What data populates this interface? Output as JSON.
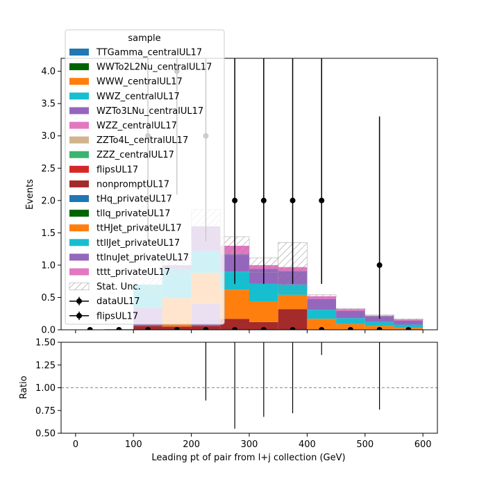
{
  "chart_data": {
    "type": "bar",
    "stacked": true,
    "bin_edges": [
      0,
      50,
      100,
      150,
      200,
      250,
      300,
      350,
      400,
      450,
      500,
      550,
      600
    ],
    "xlabel": "Leading pt of pair from l+j collection (GeV)",
    "xticks": [
      0,
      100,
      200,
      300,
      400,
      500,
      600
    ],
    "xlim": [
      -25,
      625
    ],
    "main": {
      "ylabel": "Events",
      "ylim": [
        0,
        4.2
      ],
      "yticks": [
        "0.0",
        "0.5",
        "1.0",
        "1.5",
        "2.0",
        "2.5",
        "3.0",
        "3.5",
        "4.0"
      ]
    },
    "ratio": {
      "ylabel": "Ratio",
      "ylim": [
        0.5,
        1.5
      ],
      "yticks": [
        "0.50",
        "0.75",
        "1.00",
        "1.25",
        "1.50"
      ],
      "reference_line": 1.0,
      "points": [
        {
          "x": 225,
          "lo": 0.86,
          "hi": 1.5
        },
        {
          "x": 275,
          "lo": 0.55,
          "hi": 1.5
        },
        {
          "x": 325,
          "lo": 0.68,
          "hi": 1.5
        },
        {
          "x": 375,
          "lo": 0.72,
          "hi": 1.5
        },
        {
          "x": 425,
          "lo": 1.36,
          "hi": 1.5
        },
        {
          "x": 525,
          "lo": 0.76,
          "hi": 1.5
        }
      ]
    },
    "legend": {
      "title": "sample",
      "placement": "upper-left",
      "entries": [
        {
          "label": "TTGamma_centralUL17",
          "kind": "patch",
          "color": "#1f77b4"
        },
        {
          "label": "WWTo2L2Nu_centralUL17",
          "kind": "patch",
          "color": "#006400"
        },
        {
          "label": "WWW_centralUL17",
          "kind": "patch",
          "color": "#ff7f0e"
        },
        {
          "label": "WWZ_centralUL17",
          "kind": "patch",
          "color": "#17becf"
        },
        {
          "label": "WZTo3LNu_centralUL17",
          "kind": "patch",
          "color": "#9467bd"
        },
        {
          "label": "WZZ_centralUL17",
          "kind": "patch",
          "color": "#e377c2"
        },
        {
          "label": "ZZTo4L_centralUL17",
          "kind": "patch",
          "color": "#d2b48c"
        },
        {
          "label": "ZZZ_centralUL17",
          "kind": "patch",
          "color": "#3cb371"
        },
        {
          "label": "flipsUL17",
          "kind": "patch",
          "color": "#d62728"
        },
        {
          "label": "nonpromptUL17",
          "kind": "patch",
          "color": "#a52a2a"
        },
        {
          "label": "tHq_privateUL17",
          "kind": "patch",
          "color": "#1f77b4"
        },
        {
          "label": "tllq_privateUL17",
          "kind": "patch",
          "color": "#006400"
        },
        {
          "label": "ttHJet_privateUL17",
          "kind": "patch",
          "color": "#ff7f0e"
        },
        {
          "label": "ttllJet_privateUL17",
          "kind": "patch",
          "color": "#17becf"
        },
        {
          "label": "ttlnuJet_privateUL17",
          "kind": "patch",
          "color": "#9467bd"
        },
        {
          "label": "tttt_privateUL17",
          "kind": "patch",
          "color": "#e377c2"
        },
        {
          "label": "Stat. Unc.",
          "kind": "hatch",
          "color": "#888888"
        },
        {
          "label": "dataUL17",
          "kind": "errorbar",
          "color": "#000000"
        },
        {
          "label": "flipsUL17",
          "kind": "errorbar",
          "color": "#000000"
        }
      ]
    },
    "stack_bins": [
      {
        "segments": [],
        "unc": 0
      },
      {
        "segments": [
          {
            "color": "#ff7f0e",
            "value": 0.01
          }
        ],
        "unc": 0
      },
      {
        "segments": [
          {
            "color": "#a52a2a",
            "value": 0.06
          },
          {
            "color": "#9467bd",
            "value": 0.28
          },
          {
            "color": "#17becf",
            "value": 0.36
          }
        ],
        "unc": 0.1
      },
      {
        "segments": [
          {
            "color": "#a52a2a",
            "value": 0.05
          },
          {
            "color": "#ff7f0e",
            "value": 0.44
          },
          {
            "color": "#17becf",
            "value": 0.45
          },
          {
            "color": "#9467bd",
            "value": 0.06
          }
        ],
        "unc": 0.12
      },
      {
        "segments": [
          {
            "color": "#a52a2a",
            "value": 0.06
          },
          {
            "color": "#9467bd",
            "value": 0.34
          },
          {
            "color": "#ff7f0e",
            "value": 0.48
          },
          {
            "color": "#17becf",
            "value": 0.34
          },
          {
            "color": "#9467bd",
            "value": 0.38
          }
        ],
        "unc": 0.26
      },
      {
        "segments": [
          {
            "color": "#a52a2a",
            "value": 0.17
          },
          {
            "color": "#ff7f0e",
            "value": 0.45
          },
          {
            "color": "#17becf",
            "value": 0.28
          },
          {
            "color": "#9467bd",
            "value": 0.27
          },
          {
            "color": "#e377c2",
            "value": 0.13
          }
        ],
        "unc": 0.14
      },
      {
        "segments": [
          {
            "color": "#a52a2a",
            "value": 0.12
          },
          {
            "color": "#ff7f0e",
            "value": 0.32
          },
          {
            "color": "#17becf",
            "value": 0.27
          },
          {
            "color": "#9467bd",
            "value": 0.23
          },
          {
            "color": "#e377c2",
            "value": 0.06
          }
        ],
        "unc": 0.11
      },
      {
        "segments": [
          {
            "color": "#a52a2a",
            "value": 0.32
          },
          {
            "color": "#ff7f0e",
            "value": 0.22
          },
          {
            "color": "#17becf",
            "value": 0.16
          },
          {
            "color": "#9467bd",
            "value": 0.21
          },
          {
            "color": "#e377c2",
            "value": 0.06
          }
        ],
        "unc": 0.38
      },
      {
        "segments": [
          {
            "color": "#ff7f0e",
            "value": 0.17
          },
          {
            "color": "#17becf",
            "value": 0.14
          },
          {
            "color": "#9467bd",
            "value": 0.17
          },
          {
            "color": "#e377c2",
            "value": 0.04
          }
        ],
        "unc": 0.02
      },
      {
        "segments": [
          {
            "color": "#ff7f0e",
            "value": 0.09
          },
          {
            "color": "#17becf",
            "value": 0.09
          },
          {
            "color": "#9467bd",
            "value": 0.11
          },
          {
            "color": "#e377c2",
            "value": 0.03
          }
        ],
        "unc": 0.01
      },
      {
        "segments": [
          {
            "color": "#ff7f0e",
            "value": 0.06
          },
          {
            "color": "#17becf",
            "value": 0.06
          },
          {
            "color": "#9467bd",
            "value": 0.09
          },
          {
            "color": "#e377c2",
            "value": 0.01
          }
        ],
        "unc": 0.01
      },
      {
        "segments": [
          {
            "color": "#ff7f0e",
            "value": 0.03
          },
          {
            "color": "#17becf",
            "value": 0.05
          },
          {
            "color": "#9467bd",
            "value": 0.06
          },
          {
            "color": "#e377c2",
            "value": 0.02
          }
        ],
        "unc": 0.01
      }
    ],
    "data_points": [
      {
        "x": 25,
        "y": 0,
        "lo": 0,
        "hi": 0
      },
      {
        "x": 75,
        "y": 0,
        "lo": 0,
        "hi": 0
      },
      {
        "x": 125,
        "y": 0,
        "lo": 0,
        "hi": 0
      },
      {
        "x": 125,
        "y": 3,
        "lo": 1.37,
        "hi": 4.2
      },
      {
        "x": 175,
        "y": 0,
        "lo": 0,
        "hi": 0
      },
      {
        "x": 175,
        "y": 4,
        "lo": 2.09,
        "hi": 4.2
      },
      {
        "x": 225,
        "y": 0,
        "lo": 0,
        "hi": 0
      },
      {
        "x": 225,
        "y": 3,
        "lo": 1.37,
        "hi": 4.2
      },
      {
        "x": 275,
        "y": 0,
        "lo": 0,
        "hi": 0
      },
      {
        "x": 275,
        "y": 2,
        "lo": 0.71,
        "hi": 4.2
      },
      {
        "x": 325,
        "y": 0,
        "lo": 0,
        "hi": 0
      },
      {
        "x": 325,
        "y": 2,
        "lo": 0.71,
        "hi": 4.2
      },
      {
        "x": 375,
        "y": 0,
        "lo": 0,
        "hi": 0
      },
      {
        "x": 375,
        "y": 2,
        "lo": 0.71,
        "hi": 4.2
      },
      {
        "x": 425,
        "y": 0,
        "lo": 0,
        "hi": 0
      },
      {
        "x": 425,
        "y": 2,
        "lo": 0.71,
        "hi": 4.2
      },
      {
        "x": 475,
        "y": 0,
        "lo": 0,
        "hi": 0
      },
      {
        "x": 525,
        "y": 0,
        "lo": 0,
        "hi": 0
      },
      {
        "x": 525,
        "y": 1,
        "lo": 0.17,
        "hi": 3.3
      },
      {
        "x": 575,
        "y": 0,
        "lo": 0,
        "hi": 0
      }
    ]
  }
}
